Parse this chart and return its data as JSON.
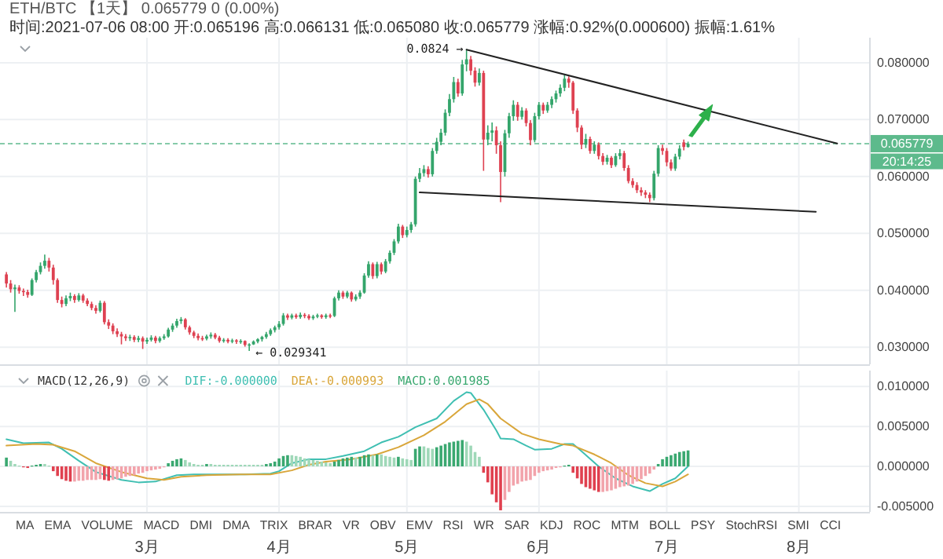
{
  "chart_data": [
    {
      "type": "candlestick",
      "title": "ETH/BTC 【1天】 0.065779 0 (0.00%)",
      "subtitle": "时间:2021-07-06 08:00 开:0.065196 高:0.066131 低:0.065080 收:0.065779 涨幅:0.92%(0.000600) 振幅:1.61%",
      "x": [
        "2021-01-27",
        "2021-01-28",
        "2021-01-29",
        "2021-01-30",
        "2021-01-31",
        "2021-02-01",
        "2021-02-02",
        "2021-02-03",
        "2021-02-04",
        "2021-02-05",
        "2021-02-06",
        "2021-02-07",
        "2021-02-08",
        "2021-02-09",
        "2021-02-10",
        "2021-02-11",
        "2021-02-12",
        "2021-02-13",
        "2021-02-14",
        "2021-02-15",
        "2021-02-16",
        "2021-02-17",
        "2021-02-18",
        "2021-02-19",
        "2021-02-20",
        "2021-02-21",
        "2021-02-22",
        "2021-02-23",
        "2021-02-24",
        "2021-02-25",
        "2021-02-26",
        "2021-02-27",
        "2021-02-28",
        "2021-03-01",
        "2021-03-02",
        "2021-03-03",
        "2021-03-04",
        "2021-03-05",
        "2021-03-06",
        "2021-03-07",
        "2021-03-08",
        "2021-03-09",
        "2021-03-10",
        "2021-03-11",
        "2021-03-12",
        "2021-03-13",
        "2021-03-14",
        "2021-03-15",
        "2021-03-16",
        "2021-03-17",
        "2021-03-18",
        "2021-03-19",
        "2021-03-20",
        "2021-03-21",
        "2021-03-22",
        "2021-03-23",
        "2021-03-24",
        "2021-03-25",
        "2021-03-26",
        "2021-03-27",
        "2021-03-28",
        "2021-03-29",
        "2021-03-30",
        "2021-03-31",
        "2021-04-01",
        "2021-04-02",
        "2021-04-03",
        "2021-04-04",
        "2021-04-05",
        "2021-04-06",
        "2021-04-07",
        "2021-04-08",
        "2021-04-09",
        "2021-04-10",
        "2021-04-11",
        "2021-04-12",
        "2021-04-13",
        "2021-04-14",
        "2021-04-15",
        "2021-04-16",
        "2021-04-17",
        "2021-04-18",
        "2021-04-19",
        "2021-04-20",
        "2021-04-21",
        "2021-04-22",
        "2021-04-23",
        "2021-04-24",
        "2021-04-25",
        "2021-04-26",
        "2021-04-27",
        "2021-04-28",
        "2021-04-29",
        "2021-04-30",
        "2021-05-01",
        "2021-05-02",
        "2021-05-03",
        "2021-05-04",
        "2021-05-05",
        "2021-05-06",
        "2021-05-07",
        "2021-05-08",
        "2021-05-09",
        "2021-05-10",
        "2021-05-11",
        "2021-05-12",
        "2021-05-13",
        "2021-05-14",
        "2021-05-15",
        "2021-05-16",
        "2021-05-17",
        "2021-05-18",
        "2021-05-19",
        "2021-05-20",
        "2021-05-21",
        "2021-05-22",
        "2021-05-23",
        "2021-05-24",
        "2021-05-25",
        "2021-05-26",
        "2021-05-27",
        "2021-05-28",
        "2021-05-29",
        "2021-05-30",
        "2021-05-31",
        "2021-06-01",
        "2021-06-02",
        "2021-06-03",
        "2021-06-04",
        "2021-06-05",
        "2021-06-06",
        "2021-06-07",
        "2021-06-08",
        "2021-06-09",
        "2021-06-10",
        "2021-06-11",
        "2021-06-12",
        "2021-06-13",
        "2021-06-14",
        "2021-06-15",
        "2021-06-16",
        "2021-06-17",
        "2021-06-18",
        "2021-06-19",
        "2021-06-20",
        "2021-06-21",
        "2021-06-22",
        "2021-06-23",
        "2021-06-24",
        "2021-06-25",
        "2021-06-26",
        "2021-06-27",
        "2021-06-28",
        "2021-06-29",
        "2021-06-30",
        "2021-07-01",
        "2021-07-02",
        "2021-07-03",
        "2021-07-04",
        "2021-07-05",
        "2021-07-06"
      ],
      "ohlc": [
        [
          0.0428,
          0.0432,
          0.0405,
          0.0412
        ],
        [
          0.0412,
          0.0418,
          0.0396,
          0.0402
        ],
        [
          0.0402,
          0.041,
          0.0362,
          0.0405
        ],
        [
          0.0405,
          0.0409,
          0.0394,
          0.0399
        ],
        [
          0.0399,
          0.0403,
          0.039,
          0.0397
        ],
        [
          0.0397,
          0.0401,
          0.0387,
          0.0392
        ],
        [
          0.0392,
          0.0421,
          0.039,
          0.0418
        ],
        [
          0.0418,
          0.0436,
          0.0414,
          0.0432
        ],
        [
          0.0432,
          0.0449,
          0.0428,
          0.0443
        ],
        [
          0.0443,
          0.0463,
          0.0438,
          0.0452
        ],
        [
          0.0452,
          0.0457,
          0.0433,
          0.044
        ],
        [
          0.044,
          0.0445,
          0.041,
          0.0418
        ],
        [
          0.0418,
          0.0421,
          0.0378,
          0.0383
        ],
        [
          0.0383,
          0.0389,
          0.037,
          0.0376
        ],
        [
          0.0376,
          0.0391,
          0.0372,
          0.0386
        ],
        [
          0.0386,
          0.0396,
          0.0381,
          0.039
        ],
        [
          0.039,
          0.0393,
          0.0378,
          0.0383
        ],
        [
          0.0383,
          0.0395,
          0.038,
          0.0391
        ],
        [
          0.0391,
          0.0394,
          0.0378,
          0.0382
        ],
        [
          0.0382,
          0.0386,
          0.0372,
          0.0376
        ],
        [
          0.0376,
          0.038,
          0.0365,
          0.0369
        ],
        [
          0.0369,
          0.0374,
          0.0359,
          0.0364
        ],
        [
          0.0364,
          0.0382,
          0.0361,
          0.0378
        ],
        [
          0.0378,
          0.0381,
          0.034,
          0.0344
        ],
        [
          0.0344,
          0.0349,
          0.0332,
          0.0338
        ],
        [
          0.0338,
          0.0342,
          0.0323,
          0.0328
        ],
        [
          0.0328,
          0.0333,
          0.0318,
          0.0323
        ],
        [
          0.0323,
          0.0327,
          0.0305,
          0.0319
        ],
        [
          0.0319,
          0.0323,
          0.0311,
          0.0316
        ],
        [
          0.0316,
          0.0322,
          0.0311,
          0.0318
        ],
        [
          0.0318,
          0.0321,
          0.0309,
          0.0313
        ],
        [
          0.0313,
          0.032,
          0.0309,
          0.0316
        ],
        [
          0.0316,
          0.0319,
          0.0297,
          0.031
        ],
        [
          0.031,
          0.0317,
          0.0306,
          0.0313
        ],
        [
          0.0313,
          0.0321,
          0.031,
          0.0317
        ],
        [
          0.0317,
          0.032,
          0.0307,
          0.0311
        ],
        [
          0.0311,
          0.0319,
          0.0308,
          0.0316
        ],
        [
          0.0316,
          0.0323,
          0.0313,
          0.0319
        ],
        [
          0.0319,
          0.0334,
          0.0317,
          0.0331
        ],
        [
          0.0331,
          0.0342,
          0.0327,
          0.0338
        ],
        [
          0.0338,
          0.035,
          0.0334,
          0.0346
        ],
        [
          0.0346,
          0.0353,
          0.0341,
          0.0349
        ],
        [
          0.0349,
          0.0351,
          0.0331,
          0.0335
        ],
        [
          0.0335,
          0.0338,
          0.0322,
          0.0326
        ],
        [
          0.0326,
          0.0329,
          0.0316,
          0.032
        ],
        [
          0.032,
          0.0324,
          0.0312,
          0.0316
        ],
        [
          0.0316,
          0.032,
          0.0311,
          0.0315
        ],
        [
          0.0315,
          0.0322,
          0.0312,
          0.0319
        ],
        [
          0.0319,
          0.0326,
          0.0315,
          0.0322
        ],
        [
          0.0322,
          0.0325,
          0.0314,
          0.0317
        ],
        [
          0.0317,
          0.032,
          0.0308,
          0.0311
        ],
        [
          0.0311,
          0.0316,
          0.0308,
          0.0313
        ],
        [
          0.0313,
          0.0316,
          0.0307,
          0.031
        ],
        [
          0.031,
          0.0315,
          0.0307,
          0.0312
        ],
        [
          0.0312,
          0.0314,
          0.0306,
          0.031
        ],
        [
          0.031,
          0.0314,
          0.0306,
          0.0311
        ],
        [
          0.0311,
          0.0312,
          0.0301,
          0.0304
        ],
        [
          0.0304,
          0.0307,
          0.029341,
          0.0305
        ],
        [
          0.0305,
          0.0312,
          0.0304,
          0.031
        ],
        [
          0.031,
          0.0316,
          0.0307,
          0.0314
        ],
        [
          0.0314,
          0.032,
          0.031,
          0.0318
        ],
        [
          0.0318,
          0.0327,
          0.0315,
          0.0323
        ],
        [
          0.0323,
          0.0333,
          0.032,
          0.033
        ],
        [
          0.033,
          0.0338,
          0.0326,
          0.0335
        ],
        [
          0.0335,
          0.0346,
          0.0331,
          0.0341
        ],
        [
          0.0341,
          0.036,
          0.0338,
          0.0356
        ],
        [
          0.0356,
          0.0359,
          0.0348,
          0.0352
        ],
        [
          0.0352,
          0.0359,
          0.0349,
          0.0356
        ],
        [
          0.0356,
          0.0359,
          0.035,
          0.0353
        ],
        [
          0.0353,
          0.0361,
          0.035,
          0.0357
        ],
        [
          0.0357,
          0.036,
          0.0351,
          0.0355
        ],
        [
          0.0355,
          0.0358,
          0.0348,
          0.0351
        ],
        [
          0.0351,
          0.0357,
          0.0348,
          0.0354
        ],
        [
          0.0354,
          0.0359,
          0.0351,
          0.0356
        ],
        [
          0.0356,
          0.0358,
          0.035,
          0.0353
        ],
        [
          0.0353,
          0.0359,
          0.035,
          0.0356
        ],
        [
          0.0356,
          0.0359,
          0.0351,
          0.0355
        ],
        [
          0.0355,
          0.0389,
          0.0353,
          0.0386
        ],
        [
          0.0386,
          0.04,
          0.0382,
          0.0396
        ],
        [
          0.0396,
          0.0399,
          0.0385,
          0.0389
        ],
        [
          0.0389,
          0.0399,
          0.0386,
          0.0396
        ],
        [
          0.0396,
          0.0398,
          0.038,
          0.0384
        ],
        [
          0.0384,
          0.0393,
          0.0381,
          0.0389
        ],
        [
          0.0389,
          0.04,
          0.0385,
          0.0396
        ],
        [
          0.0396,
          0.043,
          0.0394,
          0.0426
        ],
        [
          0.0426,
          0.0451,
          0.0422,
          0.0446
        ],
        [
          0.0446,
          0.0449,
          0.042,
          0.0425
        ],
        [
          0.0425,
          0.045,
          0.0421,
          0.0446
        ],
        [
          0.0446,
          0.0449,
          0.0428,
          0.0433
        ],
        [
          0.0433,
          0.0455,
          0.043,
          0.0451
        ],
        [
          0.0451,
          0.047,
          0.0447,
          0.0466
        ],
        [
          0.0466,
          0.049,
          0.0462,
          0.0486
        ],
        [
          0.0486,
          0.0517,
          0.0482,
          0.0512
        ],
        [
          0.0512,
          0.0515,
          0.0492,
          0.0497
        ],
        [
          0.0497,
          0.0512,
          0.0493,
          0.0506
        ],
        [
          0.0506,
          0.052,
          0.0501,
          0.0516
        ],
        [
          0.0516,
          0.06,
          0.0512,
          0.0596
        ],
        [
          0.0596,
          0.0615,
          0.059,
          0.0606
        ],
        [
          0.0606,
          0.062,
          0.06,
          0.0613
        ],
        [
          0.0613,
          0.0618,
          0.0598,
          0.0604
        ],
        [
          0.0604,
          0.065,
          0.06,
          0.0645
        ],
        [
          0.0645,
          0.0668,
          0.064,
          0.0661
        ],
        [
          0.0661,
          0.0684,
          0.0655,
          0.0677
        ],
        [
          0.0677,
          0.0718,
          0.0672,
          0.0712
        ],
        [
          0.0712,
          0.0745,
          0.0706,
          0.0736
        ],
        [
          0.0736,
          0.0775,
          0.073,
          0.0766
        ],
        [
          0.0766,
          0.0772,
          0.074,
          0.0746
        ],
        [
          0.0746,
          0.0805,
          0.0742,
          0.0797
        ],
        [
          0.0797,
          0.0824,
          0.0785,
          0.0806
        ],
        [
          0.0806,
          0.0812,
          0.0778,
          0.0786
        ],
        [
          0.0786,
          0.0792,
          0.0758,
          0.0765
        ],
        [
          0.0765,
          0.079,
          0.076,
          0.0782
        ],
        [
          0.0782,
          0.0786,
          0.061,
          0.0665
        ],
        [
          0.0665,
          0.069,
          0.0655,
          0.0677
        ],
        [
          0.0677,
          0.0695,
          0.0662,
          0.0681
        ],
        [
          0.0681,
          0.0688,
          0.064,
          0.0655
        ],
        [
          0.0655,
          0.0662,
          0.0555,
          0.0608
        ],
        [
          0.0608,
          0.0682,
          0.06,
          0.0676
        ],
        [
          0.0676,
          0.0712,
          0.0668,
          0.0706
        ],
        [
          0.0706,
          0.0734,
          0.0698,
          0.0726
        ],
        [
          0.0726,
          0.0731,
          0.0698,
          0.0705
        ],
        [
          0.0705,
          0.0722,
          0.07,
          0.0716
        ],
        [
          0.0716,
          0.072,
          0.0688,
          0.0694
        ],
        [
          0.0694,
          0.0699,
          0.0655,
          0.0664
        ],
        [
          0.0664,
          0.0712,
          0.066,
          0.0706
        ],
        [
          0.0706,
          0.0731,
          0.07,
          0.0726
        ],
        [
          0.0726,
          0.073,
          0.071,
          0.0716
        ],
        [
          0.0716,
          0.0731,
          0.0712,
          0.0726
        ],
        [
          0.0726,
          0.0741,
          0.072,
          0.0736
        ],
        [
          0.0736,
          0.0751,
          0.073,
          0.0746
        ],
        [
          0.0746,
          0.0762,
          0.074,
          0.0756
        ],
        [
          0.0756,
          0.0778,
          0.075,
          0.0772
        ],
        [
          0.0772,
          0.0776,
          0.0756,
          0.0765
        ],
        [
          0.0765,
          0.0768,
          0.071,
          0.0716
        ],
        [
          0.0716,
          0.072,
          0.0678,
          0.0686
        ],
        [
          0.0686,
          0.069,
          0.0648,
          0.0656
        ],
        [
          0.0656,
          0.0675,
          0.065,
          0.0666
        ],
        [
          0.0666,
          0.067,
          0.064,
          0.0645
        ],
        [
          0.0645,
          0.0662,
          0.064,
          0.0656
        ],
        [
          0.0656,
          0.066,
          0.063,
          0.0636
        ],
        [
          0.0636,
          0.0641,
          0.062,
          0.0626
        ],
        [
          0.0626,
          0.0638,
          0.0621,
          0.0633
        ],
        [
          0.0633,
          0.0636,
          0.0615,
          0.062
        ],
        [
          0.062,
          0.0641,
          0.0617,
          0.0636
        ],
        [
          0.0636,
          0.0648,
          0.063,
          0.0641
        ],
        [
          0.0641,
          0.0645,
          0.061,
          0.0615
        ],
        [
          0.0615,
          0.062,
          0.0588,
          0.0592
        ],
        [
          0.0592,
          0.0597,
          0.058,
          0.0585
        ],
        [
          0.0585,
          0.059,
          0.0571,
          0.0576
        ],
        [
          0.0576,
          0.0581,
          0.0566,
          0.0572
        ],
        [
          0.0572,
          0.0576,
          0.0562,
          0.0568
        ],
        [
          0.0568,
          0.0572,
          0.0555,
          0.0562
        ],
        [
          0.0562,
          0.061,
          0.0558,
          0.0605
        ],
        [
          0.0605,
          0.0655,
          0.06,
          0.065
        ],
        [
          0.065,
          0.0656,
          0.0638,
          0.0645
        ],
        [
          0.0645,
          0.065,
          0.0618,
          0.0625
        ],
        [
          0.0625,
          0.063,
          0.061,
          0.0614
        ],
        [
          0.0614,
          0.064,
          0.061,
          0.0635
        ],
        [
          0.0635,
          0.0655,
          0.063,
          0.0649
        ],
        [
          0.066,
          0.0665,
          0.0646,
          0.0652
        ],
        [
          0.065196,
          0.066131,
          0.06508,
          0.065779
        ]
      ],
      "colors": [
        "#de4151",
        "#de4151",
        "#34a56b",
        "#de4151",
        "#de4151",
        "#de4151",
        "#34a56b",
        "#34a56b",
        "#34a56b",
        "#34a56b",
        "#de4151",
        "#de4151",
        "#de4151",
        "#de4151",
        "#34a56b",
        "#34a56b",
        "#de4151",
        "#34a56b",
        "#de4151",
        "#de4151",
        "#de4151",
        "#de4151",
        "#34a56b",
        "#de4151",
        "#de4151",
        "#de4151",
        "#de4151",
        "#de4151",
        "#de4151",
        "#34a56b",
        "#de4151",
        "#34a56b",
        "#de4151",
        "#34a56b",
        "#34a56b",
        "#de4151",
        "#34a56b",
        "#34a56b",
        "#34a56b",
        "#34a56b",
        "#34a56b",
        "#34a56b",
        "#de4151",
        "#de4151",
        "#de4151",
        "#de4151",
        "#de4151",
        "#34a56b",
        "#34a56b",
        "#de4151",
        "#de4151",
        "#34a56b",
        "#de4151",
        "#34a56b",
        "#de4151",
        "#34a56b",
        "#de4151",
        "#34a56b",
        "#34a56b",
        "#34a56b",
        "#34a56b",
        "#34a56b",
        "#34a56b",
        "#34a56b",
        "#34a56b",
        "#34a56b",
        "#de4151",
        "#34a56b",
        "#de4151",
        "#34a56b",
        "#de4151",
        "#de4151",
        "#34a56b",
        "#34a56b",
        "#de4151",
        "#34a56b",
        "#de4151",
        "#34a56b",
        "#34a56b",
        "#de4151",
        "#34a56b",
        "#de4151",
        "#34a56b",
        "#34a56b",
        "#34a56b",
        "#34a56b",
        "#de4151",
        "#34a56b",
        "#de4151",
        "#34a56b",
        "#34a56b",
        "#34a56b",
        "#34a56b",
        "#de4151",
        "#34a56b",
        "#34a56b",
        "#34a56b",
        "#34a56b",
        "#34a56b",
        "#de4151",
        "#34a56b",
        "#34a56b",
        "#34a56b",
        "#34a56b",
        "#34a56b",
        "#34a56b",
        "#de4151",
        "#34a56b",
        "#34a56b",
        "#de4151",
        "#de4151",
        "#34a56b",
        "#de4151",
        "#34a56b",
        "#34a56b",
        "#de4151",
        "#de4151",
        "#34a56b",
        "#34a56b",
        "#34a56b",
        "#de4151",
        "#34a56b",
        "#de4151",
        "#de4151",
        "#34a56b",
        "#34a56b",
        "#de4151",
        "#34a56b",
        "#34a56b",
        "#34a56b",
        "#34a56b",
        "#34a56b",
        "#de4151",
        "#de4151",
        "#de4151",
        "#de4151",
        "#34a56b",
        "#de4151",
        "#34a56b",
        "#de4151",
        "#de4151",
        "#34a56b",
        "#de4151",
        "#34a56b",
        "#34a56b",
        "#de4151",
        "#de4151",
        "#de4151",
        "#de4151",
        "#de4151",
        "#de4151",
        "#de4151",
        "#34a56b",
        "#34a56b",
        "#de4151",
        "#de4151",
        "#de4151",
        "#34a56b",
        "#34a56b",
        "#de4151",
        "#34a56b"
      ],
      "series": [
        {
          "type": "line",
          "color": "#222222",
          "x": [
            "2021-05-15",
            "2021-08-10"
          ],
          "values": [
            0.0823,
            0.0658
          ]
        },
        {
          "type": "line",
          "color": "#222222",
          "x": [
            "2021-05-04",
            "2021-08-05"
          ],
          "values": [
            0.0572,
            0.0538
          ]
        }
      ],
      "xlim": [
        "2021-01-25T12:00",
        "2021-08-17T12:00"
      ],
      "xticks": [
        "2021-03-01",
        "2021-04-01",
        "2021-05-01",
        "2021-06-01",
        "2021-07-01",
        "2021-08-01"
      ],
      "ylim": [
        0.027,
        0.0844
      ],
      "yticks": [
        {
          "value": 0.03,
          "label": "0.030000"
        },
        {
          "value": 0.04,
          "label": "0.040000"
        },
        {
          "value": 0.05,
          "label": "0.050000"
        },
        {
          "value": 0.06,
          "label": "0.060000"
        },
        {
          "value": 0.07,
          "label": "0.070000"
        },
        {
          "value": 0.08,
          "label": "0.080000"
        }
      ],
      "tick_labels": "y",
      "grid": true,
      "ref_lines": [
        {
          "axis": "y",
          "value": 0.065779,
          "label": "0.065779",
          "color": "#5dba8c",
          "line_style": "dashed"
        }
      ],
      "annotations": [
        {
          "text": "0.0824 →",
          "x": "2021-05-15",
          "y": 0.0824
        },
        {
          "text": "← 0.029341",
          "x": "2021-03-25",
          "y": 0.029341
        },
        "20:14:25"
      ]
    },
    {
      "type": "line",
      "title": "MACD(12,26,9)",
      "legend": "top left",
      "x": [
        "2021-01-27",
        "2021-01-28",
        "2021-01-29",
        "2021-01-30",
        "2021-01-31",
        "2021-02-01",
        "2021-02-02",
        "2021-02-03",
        "2021-02-04",
        "2021-02-05",
        "2021-02-06",
        "2021-02-07",
        "2021-02-08",
        "2021-02-09",
        "2021-02-10",
        "2021-02-11",
        "2021-02-12",
        "2021-02-13",
        "2021-02-14",
        "2021-02-15",
        "2021-02-16",
        "2021-02-17",
        "2021-02-18",
        "2021-02-19",
        "2021-02-20",
        "2021-02-21",
        "2021-02-22",
        "2021-02-23",
        "2021-02-24",
        "2021-02-25",
        "2021-02-26",
        "2021-02-27",
        "2021-02-28",
        "2021-03-01",
        "2021-03-02",
        "2021-03-03",
        "2021-03-04",
        "2021-03-05",
        "2021-03-06",
        "2021-03-07",
        "2021-03-08",
        "2021-03-09",
        "2021-03-10",
        "2021-03-11",
        "2021-03-12",
        "2021-03-13",
        "2021-03-14",
        "2021-03-15",
        "2021-03-16",
        "2021-03-17",
        "2021-03-18",
        "2021-03-19",
        "2021-03-20",
        "2021-03-21",
        "2021-03-22",
        "2021-03-23",
        "2021-03-24",
        "2021-03-25",
        "2021-03-26",
        "2021-03-27",
        "2021-03-28",
        "2021-03-29",
        "2021-03-30",
        "2021-03-31",
        "2021-04-01",
        "2021-04-02",
        "2021-04-03",
        "2021-04-04",
        "2021-04-05",
        "2021-04-06",
        "2021-04-07",
        "2021-04-08",
        "2021-04-09",
        "2021-04-10",
        "2021-04-11",
        "2021-04-12",
        "2021-04-13",
        "2021-04-14",
        "2021-04-15",
        "2021-04-16",
        "2021-04-17",
        "2021-04-18",
        "2021-04-19",
        "2021-04-20",
        "2021-04-21",
        "2021-04-22",
        "2021-04-23",
        "2021-04-24",
        "2021-04-25",
        "2021-04-26",
        "2021-04-27",
        "2021-04-28",
        "2021-04-29",
        "2021-04-30",
        "2021-05-01",
        "2021-05-02",
        "2021-05-03",
        "2021-05-04",
        "2021-05-05",
        "2021-05-06",
        "2021-05-07",
        "2021-05-08",
        "2021-05-09",
        "2021-05-10",
        "2021-05-11",
        "2021-05-12",
        "2021-05-13",
        "2021-05-14",
        "2021-05-15",
        "2021-05-16",
        "2021-05-17",
        "2021-05-18",
        "2021-05-19",
        "2021-05-20",
        "2021-05-21",
        "2021-05-22",
        "2021-05-23",
        "2021-05-24",
        "2021-05-25",
        "2021-05-26",
        "2021-05-27",
        "2021-05-28",
        "2021-05-29",
        "2021-05-30",
        "2021-05-31",
        "2021-06-01",
        "2021-06-02",
        "2021-06-03",
        "2021-06-04",
        "2021-06-05",
        "2021-06-06",
        "2021-06-07",
        "2021-06-08",
        "2021-06-09",
        "2021-06-10",
        "2021-06-11",
        "2021-06-12",
        "2021-06-13",
        "2021-06-14",
        "2021-06-15",
        "2021-06-16",
        "2021-06-17",
        "2021-06-18",
        "2021-06-19",
        "2021-06-20",
        "2021-06-21",
        "2021-06-22",
        "2021-06-23",
        "2021-06-24",
        "2021-06-25",
        "2021-06-26",
        "2021-06-27",
        "2021-06-28",
        "2021-06-29",
        "2021-06-30",
        "2021-07-01",
        "2021-07-02",
        "2021-07-03",
        "2021-07-04",
        "2021-07-05",
        "2021-07-06"
      ],
      "series": [
        {
          "name": "DIF:-0.000000",
          "type": "line",
          "color": "#3fbfb2",
          "x": [
            "2021-01-27",
            "2021-01-31",
            "2021-02-06",
            "2021-02-09",
            "2021-02-13",
            "2021-02-17",
            "2021-02-23",
            "2021-02-27",
            "2021-03-03",
            "2021-03-08",
            "2021-03-12",
            "2021-03-18",
            "2021-03-24",
            "2021-03-30",
            "2021-04-01",
            "2021-04-04",
            "2021-04-08",
            "2021-04-12",
            "2021-04-16",
            "2021-04-21",
            "2021-04-25",
            "2021-04-29",
            "2021-05-03",
            "2021-05-08",
            "2021-05-12",
            "2021-05-15",
            "2021-05-16",
            "2021-05-19",
            "2021-05-22",
            "2021-05-23",
            "2021-05-26",
            "2021-05-29",
            "2021-05-31",
            "2021-06-04",
            "2021-06-07",
            "2021-06-09",
            "2021-06-11",
            "2021-06-15",
            "2021-06-19",
            "2021-06-23",
            "2021-06-27",
            "2021-06-30",
            "2021-07-03",
            "2021-07-06"
          ],
          "values": [
            0.0034,
            0.0029,
            0.003,
            0.0022,
            0.0007,
            -0.0007,
            -0.0017,
            -0.002,
            -0.0019,
            -0.0011,
            -0.001,
            -0.001,
            -0.001,
            -0.0009,
            -0.0006,
            0.0004,
            0.0009,
            0.0009,
            0.0013,
            0.0019,
            0.003,
            0.0037,
            0.0049,
            0.006,
            0.0082,
            0.0093,
            0.0092,
            0.0071,
            0.0045,
            0.0035,
            0.0034,
            0.0026,
            0.0021,
            0.0022,
            0.0028,
            0.0028,
            0.0019,
            0.0,
            -0.0015,
            -0.0025,
            -0.0031,
            -0.0022,
            -0.0015,
            0.0
          ]
        },
        {
          "name": "DEA:-0.000993",
          "type": "line",
          "color": "#d9a63a",
          "x": [
            "2021-01-27",
            "2021-02-03",
            "2021-02-07",
            "2021-02-12",
            "2021-02-17",
            "2021-02-23",
            "2021-03-01",
            "2021-03-05",
            "2021-03-09",
            "2021-03-15",
            "2021-03-23",
            "2021-03-30",
            "2021-04-04",
            "2021-04-08",
            "2021-04-12",
            "2021-04-18",
            "2021-04-24",
            "2021-04-29",
            "2021-05-05",
            "2021-05-10",
            "2021-05-15",
            "2021-05-18",
            "2021-05-20",
            "2021-05-23",
            "2021-05-28",
            "2021-06-01",
            "2021-06-06",
            "2021-06-09",
            "2021-06-14",
            "2021-06-18",
            "2021-06-22",
            "2021-06-26",
            "2021-06-30",
            "2021-07-03",
            "2021-07-06"
          ],
          "values": [
            0.0026,
            0.0028,
            0.0027,
            0.0019,
            0.0004,
            -0.0007,
            -0.0015,
            -0.0017,
            -0.0013,
            -0.0011,
            -0.001,
            -0.001,
            -0.0005,
            0.0002,
            0.0006,
            0.0009,
            0.0015,
            0.0024,
            0.0039,
            0.0056,
            0.0078,
            0.0084,
            0.0078,
            0.006,
            0.0041,
            0.0034,
            0.0028,
            0.0026,
            0.0015,
            0.0004,
            -0.0011,
            -0.0021,
            -0.0025,
            -0.0019,
            -0.001
          ]
        },
        {
          "name": "MACD:0.001985",
          "type": "bar",
          "color": "#3aa870",
          "values": [
            0.0011,
            0.0007,
            0.0003,
            0.0001,
            -0.0001,
            -0.0002,
            0.0001,
            0.0002,
            0.0003,
            0.0003,
            0.0001,
            -0.0006,
            -0.0012,
            -0.0016,
            -0.0018,
            -0.0019,
            -0.0019,
            -0.0018,
            -0.0018,
            -0.0017,
            -0.0017,
            -0.0017,
            -0.0016,
            -0.0017,
            -0.0018,
            -0.0017,
            -0.0016,
            -0.0015,
            -0.0013,
            -0.0012,
            -0.0011,
            -0.0009,
            -0.0008,
            -0.0006,
            -0.0005,
            -0.0004,
            -0.0003,
            -0.0001,
            0.0004,
            0.0007,
            0.0009,
            0.001,
            0.0008,
            0.0005,
            0.0003,
            0.0002,
            0.0002,
            0.0003,
            0.0003,
            0.0002,
            0.0002,
            0.0002,
            0.0002,
            0.0002,
            0.0002,
            0.0002,
            0.0002,
            0.0002,
            0.0002,
            0.0002,
            0.0002,
            0.0003,
            0.0004,
            0.0006,
            0.001,
            0.0013,
            0.0014,
            0.0014,
            0.0013,
            0.0012,
            0.001,
            0.0009,
            0.0008,
            0.0007,
            0.0006,
            0.0005,
            0.0004,
            0.0006,
            0.0008,
            0.001,
            0.0011,
            0.0012,
            0.0011,
            0.0012,
            0.0014,
            0.0015,
            0.0014,
            0.0015,
            0.0015,
            0.0013,
            0.0012,
            0.0011,
            0.0012,
            0.001,
            0.0009,
            0.0008,
            0.0022,
            0.0025,
            0.0025,
            0.0023,
            0.0022,
            0.0024,
            0.0026,
            0.0028,
            0.003,
            0.0031,
            0.0032,
            0.0033,
            0.0031,
            0.0026,
            0.0018,
            0.0012,
            -0.0008,
            -0.002,
            -0.0035,
            -0.0045,
            -0.0055,
            -0.0042,
            -0.0032,
            -0.0024,
            -0.0022,
            -0.0019,
            -0.0018,
            -0.0017,
            -0.0012,
            -0.0008,
            -0.0006,
            -0.0005,
            -0.0004,
            -0.0002,
            -0.0001,
            0.0001,
            0.0002,
            -0.0008,
            -0.0015,
            -0.0022,
            -0.0026,
            -0.0028,
            -0.003,
            -0.0032,
            -0.0032,
            -0.0031,
            -0.003,
            -0.0028,
            -0.0026,
            -0.0025,
            -0.0024,
            -0.0022,
            -0.0019,
            -0.0016,
            -0.0012,
            -0.0009,
            -0.0004,
            0.0003,
            0.0009,
            0.0012,
            0.0014,
            0.0016,
            0.0018,
            0.0019,
            0.002
          ],
          "colors": [
            "#3aa870",
            "#9fd8b8",
            "#9fd8b8",
            "#9fd8b8",
            "#e0404f",
            "#e0404f",
            "#3aa870",
            "#3aa870",
            "#3aa870",
            "#9fd8b8",
            "#9fd8b8",
            "#e0404f",
            "#e0404f",
            "#e0404f",
            "#e0404f",
            "#e0404f",
            "#f2a3ab",
            "#f2a3ab",
            "#f2a3ab",
            "#f2a3ab",
            "#f2a3ab",
            "#f2a3ab",
            "#f2a3ab",
            "#e0404f",
            "#e0404f",
            "#f2a3ab",
            "#f2a3ab",
            "#f2a3ab",
            "#f2a3ab",
            "#f2a3ab",
            "#f2a3ab",
            "#f2a3ab",
            "#f2a3ab",
            "#f2a3ab",
            "#f2a3ab",
            "#f2a3ab",
            "#f2a3ab",
            "#f2a3ab",
            "#3aa870",
            "#3aa870",
            "#3aa870",
            "#3aa870",
            "#9fd8b8",
            "#9fd8b8",
            "#9fd8b8",
            "#9fd8b8",
            "#9fd8b8",
            "#3aa870",
            "#9fd8b8",
            "#9fd8b8",
            "#9fd8b8",
            "#9fd8b8",
            "#9fd8b8",
            "#9fd8b8",
            "#9fd8b8",
            "#9fd8b8",
            "#9fd8b8",
            "#9fd8b8",
            "#9fd8b8",
            "#9fd8b8",
            "#9fd8b8",
            "#3aa870",
            "#3aa870",
            "#3aa870",
            "#3aa870",
            "#3aa870",
            "#3aa870",
            "#9fd8b8",
            "#9fd8b8",
            "#9fd8b8",
            "#9fd8b8",
            "#9fd8b8",
            "#9fd8b8",
            "#9fd8b8",
            "#9fd8b8",
            "#9fd8b8",
            "#9fd8b8",
            "#3aa870",
            "#3aa870",
            "#3aa870",
            "#3aa870",
            "#3aa870",
            "#9fd8b8",
            "#3aa870",
            "#3aa870",
            "#3aa870",
            "#9fd8b8",
            "#3aa870",
            "#9fd8b8",
            "#9fd8b8",
            "#9fd8b8",
            "#9fd8b8",
            "#3aa870",
            "#9fd8b8",
            "#9fd8b8",
            "#9fd8b8",
            "#3aa870",
            "#3aa870",
            "#9fd8b8",
            "#9fd8b8",
            "#9fd8b8",
            "#3aa870",
            "#3aa870",
            "#3aa870",
            "#3aa870",
            "#3aa870",
            "#3aa870",
            "#3aa870",
            "#9fd8b8",
            "#9fd8b8",
            "#9fd8b8",
            "#9fd8b8",
            "#e0404f",
            "#e0404f",
            "#e0404f",
            "#e0404f",
            "#e0404f",
            "#f2a3ab",
            "#f2a3ab",
            "#f2a3ab",
            "#f2a3ab",
            "#f2a3ab",
            "#f2a3ab",
            "#f2a3ab",
            "#f2a3ab",
            "#f2a3ab",
            "#f2a3ab",
            "#f2a3ab",
            "#f2a3ab",
            "#f2a3ab",
            "#f2a3ab",
            "#3aa870",
            "#3aa870",
            "#e0404f",
            "#e0404f",
            "#e0404f",
            "#e0404f",
            "#e0404f",
            "#e0404f",
            "#e0404f",
            "#f2a3ab",
            "#f2a3ab",
            "#f2a3ab",
            "#f2a3ab",
            "#f2a3ab",
            "#f2a3ab",
            "#f2a3ab",
            "#f2a3ab",
            "#f2a3ab",
            "#f2a3ab",
            "#f2a3ab",
            "#f2a3ab",
            "#f2a3ab",
            "#3aa870",
            "#3aa870",
            "#3aa870",
            "#3aa870",
            "#3aa870",
            "#3aa870",
            "#3aa870",
            "#3aa870"
          ]
        }
      ],
      "xlim": [
        "2021-01-25T12:00",
        "2021-08-17T12:00"
      ],
      "xticks": [
        {
          "value": "2021-03-01",
          "label": "3月"
        },
        {
          "value": "2021-04-01",
          "label": "4月"
        },
        {
          "value": "2021-05-01",
          "label": "5月"
        },
        {
          "value": "2021-06-01",
          "label": "6月"
        },
        {
          "value": "2021-07-01",
          "label": "7月"
        },
        {
          "value": "2021-08-01",
          "label": "8月"
        }
      ],
      "ylim": [
        -0.0057,
        0.012
      ],
      "yticks": [
        {
          "value": -0.005,
          "label": "-0.005000"
        },
        {
          "value": 0,
          "label": "0.000000"
        },
        {
          "value": 0.005,
          "label": "0.005000"
        },
        {
          "value": 0.01,
          "label": "0.010000"
        }
      ],
      "grid": true
    },
    {
      "type": "other",
      "annotations": [
        "MA",
        "EMA",
        "VOLUME",
        "MACD",
        "DMI",
        "DMA",
        "TRIX",
        "BRAR",
        "VR",
        "OBV",
        "EMV",
        "RSI",
        "WR",
        "SAR",
        "KDJ",
        "ROC",
        "MTM",
        "BOLL",
        "PSY",
        "StochRSI",
        "SMI",
        "CCI"
      ]
    }
  ]
}
